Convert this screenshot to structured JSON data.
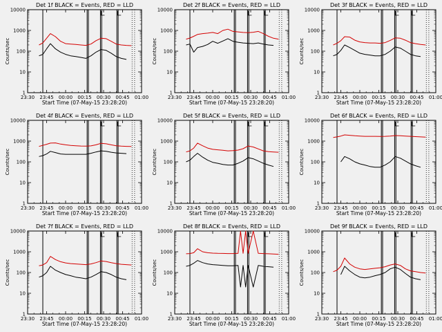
{
  "figure": {
    "background": "#f0f0f0",
    "xlabel": "Start Time (07-May-15 23:28:20)",
    "ylabel": "Counts/sec",
    "x_ticks": [
      "23:30",
      "23:45",
      "00:00",
      "00:15",
      "00:30",
      "00:45",
      "01:00"
    ],
    "y_ticks": [
      "1",
      "10",
      "100",
      "1000",
      "10000"
    ],
    "colors": {
      "events": "#000000",
      "lld": "#d40000"
    }
  },
  "chart_data": [
    {
      "type": "line",
      "title": "Det 1f BLACK = Events, RED = LLD",
      "x_minutes": [
        0,
        90
      ],
      "ylim": [
        1,
        10000
      ],
      "yscale": "log",
      "x": [
        0,
        5,
        9,
        12,
        15,
        18,
        22,
        26,
        30,
        34,
        38,
        42,
        46,
        50,
        54,
        58,
        62,
        66,
        70,
        74,
        78,
        82,
        86,
        90
      ],
      "series": [
        {
          "key": "lld",
          "values": [
            null,
            null,
            200,
            250,
            420,
            700,
            500,
            300,
            230,
            220,
            210,
            200,
            190,
            220,
            320,
            420,
            400,
            300,
            220,
            200,
            190,
            185,
            null,
            null
          ]
        },
        {
          "key": "events",
          "values": [
            null,
            null,
            60,
            70,
            130,
            230,
            130,
            90,
            70,
            60,
            55,
            50,
            45,
            60,
            90,
            120,
            110,
            80,
            55,
            45,
            40,
            null,
            null,
            null
          ]
        }
      ],
      "markers": {
        "solid": [
          12,
          47,
          48,
          57.5,
          58.5,
          70.5,
          71.5
        ],
        "dotted": [
          82.5,
          84.5
        ]
      }
    },
    {
      "type": "line",
      "title": "Det 2f BLACK = Events, RED = LLD",
      "x_minutes": [
        0,
        90
      ],
      "ylim": [
        1,
        10000
      ],
      "yscale": "log",
      "x": [
        0,
        5,
        9,
        12,
        15,
        18,
        22,
        26,
        30,
        34,
        38,
        42,
        46,
        50,
        54,
        58,
        62,
        66,
        70,
        74,
        78,
        82,
        86,
        90
      ],
      "series": [
        {
          "key": "lld",
          "values": [
            null,
            null,
            380,
            430,
            520,
            640,
            700,
            740,
            800,
            700,
            1000,
            1150,
            900,
            850,
            800,
            780,
            820,
            900,
            700,
            520,
            420,
            380,
            null,
            null
          ]
        },
        {
          "key": "events",
          "values": [
            null,
            null,
            200,
            220,
            90,
            150,
            170,
            210,
            300,
            240,
            310,
            400,
            300,
            270,
            250,
            240,
            230,
            250,
            220,
            200,
            190,
            null,
            null,
            null
          ]
        }
      ],
      "markers": {
        "solid": [
          12,
          47,
          48,
          57.5,
          58.5,
          70.5,
          71.5
        ],
        "dotted": [
          82.5,
          84.5
        ]
      }
    },
    {
      "type": "line",
      "title": "Det 3f BLACK = Events, RED = LLD",
      "x_minutes": [
        0,
        90
      ],
      "ylim": [
        1,
        10000
      ],
      "yscale": "log",
      "x": [
        0,
        5,
        9,
        12,
        15,
        18,
        22,
        26,
        30,
        34,
        38,
        42,
        46,
        50,
        54,
        58,
        62,
        66,
        70,
        74,
        78,
        82,
        86,
        90
      ],
      "series": [
        {
          "key": "lld",
          "values": [
            null,
            null,
            200,
            240,
            320,
            500,
            480,
            340,
            280,
            260,
            250,
            250,
            240,
            260,
            330,
            440,
            420,
            340,
            260,
            230,
            210,
            200,
            null,
            null
          ]
        },
        {
          "key": "events",
          "values": [
            null,
            null,
            60,
            70,
            110,
            200,
            150,
            110,
            80,
            70,
            65,
            60,
            60,
            70,
            100,
            160,
            140,
            100,
            70,
            60,
            55,
            null,
            null,
            null
          ]
        }
      ],
      "markers": {
        "solid": [
          12,
          47,
          48,
          57.5,
          58.5,
          70.5,
          71.5
        ],
        "dotted": [
          82.5,
          84.5
        ]
      }
    },
    {
      "type": "line",
      "title": "Det 4f BLACK = Events, RED = LLD",
      "x_minutes": [
        0,
        90
      ],
      "ylim": [
        1,
        10000
      ],
      "yscale": "log",
      "x": [
        0,
        5,
        9,
        12,
        15,
        18,
        22,
        26,
        30,
        34,
        38,
        42,
        46,
        50,
        54,
        58,
        62,
        66,
        70,
        74,
        78,
        82,
        86,
        90
      ],
      "series": [
        {
          "key": "lld",
          "values": [
            null,
            null,
            560,
            620,
            700,
            800,
            820,
            720,
            660,
            620,
            600,
            580,
            570,
            590,
            660,
            780,
            740,
            660,
            600,
            570,
            560,
            550,
            null,
            null
          ]
        },
        {
          "key": "events",
          "values": [
            null,
            null,
            180,
            200,
            240,
            320,
            280,
            240,
            230,
            230,
            230,
            230,
            230,
            260,
            300,
            340,
            320,
            290,
            270,
            260,
            250,
            null,
            null,
            null
          ]
        }
      ],
      "markers": {
        "solid": [
          12,
          47,
          48,
          57.5,
          58.5,
          70.5,
          71.5
        ],
        "dotted": [
          82.5,
          84.5
        ]
      }
    },
    {
      "type": "line",
      "title": "Det 5f BLACK = Events, RED = LLD",
      "x_minutes": [
        0,
        90
      ],
      "ylim": [
        1,
        10000
      ],
      "yscale": "log",
      "x": [
        0,
        5,
        9,
        12,
        15,
        18,
        22,
        26,
        30,
        34,
        38,
        42,
        46,
        50,
        54,
        58,
        62,
        66,
        70,
        74,
        78,
        82,
        86,
        90
      ],
      "series": [
        {
          "key": "lld",
          "values": [
            null,
            null,
            300,
            340,
            460,
            800,
            600,
            460,
            400,
            380,
            360,
            340,
            350,
            370,
            430,
            580,
            520,
            420,
            340,
            310,
            300,
            290,
            null,
            null
          ]
        },
        {
          "key": "events",
          "values": [
            null,
            null,
            100,
            120,
            180,
            260,
            170,
            120,
            95,
            85,
            75,
            70,
            70,
            85,
            110,
            160,
            140,
            110,
            85,
            70,
            60,
            null,
            null,
            null
          ]
        }
      ],
      "markers": {
        "solid": [
          12,
          47,
          48,
          57.5,
          58.5,
          70.5,
          71.5
        ],
        "dotted": [
          82.5,
          84.5
        ]
      }
    },
    {
      "type": "line",
      "title": "Det 6f BLACK = Events, RED = LLD",
      "x_minutes": [
        0,
        90
      ],
      "ylim": [
        1,
        10000
      ],
      "yscale": "log",
      "x": [
        0,
        5,
        9,
        12,
        15,
        18,
        22,
        26,
        30,
        34,
        38,
        42,
        46,
        50,
        54,
        58,
        62,
        66,
        70,
        74,
        78,
        82,
        86,
        90
      ],
      "series": [
        {
          "key": "lld",
          "values": [
            null,
            null,
            1500,
            1600,
            1750,
            2000,
            1900,
            1800,
            1750,
            1700,
            1700,
            1700,
            1680,
            1700,
            1750,
            1850,
            1800,
            1750,
            1700,
            1650,
            1600,
            1550,
            null,
            null
          ]
        },
        {
          "key": "events",
          "values": [
            null,
            null,
            null,
            null,
            100,
            180,
            140,
            100,
            80,
            70,
            60,
            55,
            55,
            70,
            100,
            180,
            150,
            110,
            80,
            65,
            55,
            null,
            null,
            null
          ]
        }
      ],
      "markers": {
        "solid": [
          12,
          47,
          48,
          57.5,
          58.5,
          70.5,
          71.5
        ],
        "dotted": [
          82.5,
          84.5
        ]
      }
    },
    {
      "type": "line",
      "title": "Det 7f BLACK = Events, RED = LLD",
      "x_minutes": [
        0,
        90
      ],
      "ylim": [
        1,
        10000
      ],
      "yscale": "log",
      "x": [
        0,
        5,
        9,
        12,
        15,
        18,
        22,
        26,
        30,
        34,
        38,
        42,
        46,
        50,
        54,
        58,
        62,
        66,
        70,
        74,
        78,
        82,
        86,
        90
      ],
      "series": [
        {
          "key": "lld",
          "values": [
            null,
            null,
            210,
            230,
            300,
            600,
            420,
            330,
            290,
            270,
            260,
            250,
            240,
            260,
            300,
            360,
            340,
            300,
            270,
            250,
            240,
            230,
            null,
            null
          ]
        },
        {
          "key": "events",
          "values": [
            null,
            null,
            60,
            70,
            100,
            200,
            130,
            100,
            80,
            70,
            60,
            55,
            50,
            60,
            80,
            110,
            100,
            80,
            60,
            50,
            45,
            null,
            null,
            null
          ]
        }
      ],
      "markers": {
        "solid": [
          12,
          47,
          48,
          57.5,
          58.5,
          70.5,
          71.5
        ],
        "dotted": [
          82.5,
          84.5
        ]
      }
    },
    {
      "type": "line",
      "title": "Det 8f BLACK = Events, RED = LLD",
      "x_minutes": [
        0,
        90
      ],
      "ylim": [
        1,
        10000
      ],
      "yscale": "log",
      "x": [
        0,
        5,
        9,
        12,
        15,
        18,
        22,
        26,
        30,
        34,
        38,
        42,
        46,
        50,
        52,
        54,
        56,
        58,
        62,
        66,
        70,
        74,
        78,
        82,
        86,
        90
      ],
      "series": [
        {
          "key": "lld",
          "values": [
            null,
            null,
            800,
            820,
            900,
            1400,
            1000,
            900,
            860,
            840,
            830,
            820,
            820,
            840,
            10000,
            840,
            10000,
            840,
            10000,
            840,
            820,
            800,
            780,
            760,
            null,
            null
          ]
        },
        {
          "key": "events",
          "values": [
            null,
            null,
            200,
            220,
            280,
            380,
            300,
            260,
            240,
            230,
            220,
            210,
            210,
            220,
            20,
            220,
            20,
            220,
            20,
            220,
            200,
            190,
            180,
            null,
            null,
            null
          ]
        }
      ],
      "markers": {
        "solid": [
          12,
          47,
          48,
          57.5,
          58.5,
          70.5,
          71.5
        ],
        "dotted": [
          82.5,
          84.5
        ]
      }
    },
    {
      "type": "line",
      "title": "Det 9f BLACK = Events, RED = LLD",
      "x_minutes": [
        0,
        90
      ],
      "ylim": [
        1,
        10000
      ],
      "yscale": "log",
      "x": [
        0,
        5,
        9,
        12,
        15,
        18,
        22,
        26,
        30,
        34,
        38,
        42,
        46,
        50,
        54,
        58,
        62,
        66,
        70,
        74,
        78,
        82,
        86,
        90
      ],
      "series": [
        {
          "key": "lld",
          "values": [
            null,
            null,
            110,
            130,
            200,
            500,
            260,
            180,
            150,
            140,
            150,
            160,
            170,
            190,
            230,
            260,
            220,
            150,
            120,
            110,
            100,
            95,
            null,
            null
          ]
        },
        {
          "key": "events",
          "values": [
            null,
            null,
            null,
            null,
            80,
            200,
            120,
            80,
            60,
            55,
            60,
            70,
            80,
            100,
            150,
            180,
            140,
            90,
            60,
            50,
            45,
            null,
            null,
            null
          ]
        }
      ],
      "markers": {
        "solid": [
          12,
          47,
          48,
          57.5,
          58.5,
          70.5,
          71.5
        ],
        "dotted": [
          82.5,
          84.5
        ]
      }
    }
  ]
}
